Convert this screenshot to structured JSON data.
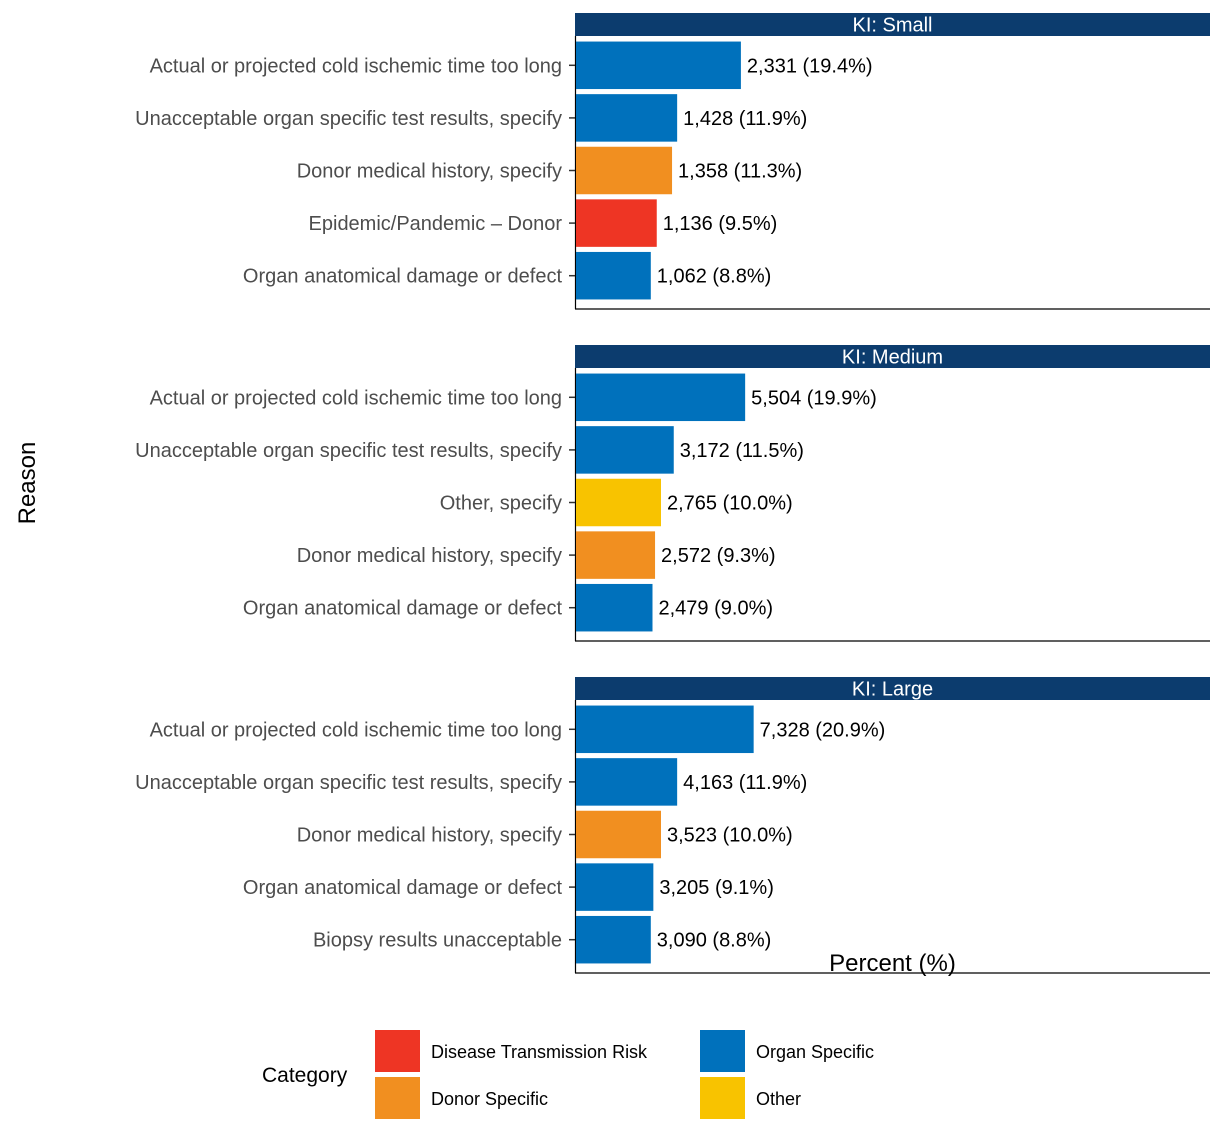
{
  "chart_data": {
    "type": "bar",
    "orientation": "horizontal",
    "facets": [
      {
        "title": "KI: Small",
        "bars": [
          {
            "reason": "Actual or projected cold ischemic time too long",
            "count": 2331,
            "percent": 19.4,
            "label": "2,331 (19.4%)",
            "category": "Organ Specific"
          },
          {
            "reason": "Unacceptable organ specific test results, specify",
            "count": 1428,
            "percent": 11.9,
            "label": "1,428 (11.9%)",
            "category": "Organ Specific"
          },
          {
            "reason": "Donor medical history, specify",
            "count": 1358,
            "percent": 11.3,
            "label": "1,358 (11.3%)",
            "category": "Donor Specific"
          },
          {
            "reason": "Epidemic/Pandemic – Donor",
            "count": 1136,
            "percent": 9.5,
            "label": "1,136 (9.5%)",
            "category": "Disease Transmission Risk"
          },
          {
            "reason": "Organ anatomical damage or defect",
            "count": 1062,
            "percent": 8.8,
            "label": "1,062 (8.8%)",
            "category": "Organ Specific"
          }
        ]
      },
      {
        "title": "KI: Medium",
        "bars": [
          {
            "reason": "Actual or projected cold ischemic time too long",
            "count": 5504,
            "percent": 19.9,
            "label": "5,504 (19.9%)",
            "category": "Organ Specific"
          },
          {
            "reason": "Unacceptable organ specific test results, specify",
            "count": 3172,
            "percent": 11.5,
            "label": "3,172 (11.5%)",
            "category": "Organ Specific"
          },
          {
            "reason": "Other, specify",
            "count": 2765,
            "percent": 10.0,
            "label": "2,765 (10.0%)",
            "category": "Other"
          },
          {
            "reason": "Donor medical history, specify",
            "count": 2572,
            "percent": 9.3,
            "label": "2,572 (9.3%)",
            "category": "Donor Specific"
          },
          {
            "reason": "Organ anatomical damage or defect",
            "count": 2479,
            "percent": 9.0,
            "label": "2,479 (9.0%)",
            "category": "Organ Specific"
          }
        ]
      },
      {
        "title": "KI: Large",
        "bars": [
          {
            "reason": "Actual or projected cold ischemic time too long",
            "count": 7328,
            "percent": 20.9,
            "label": "7,328 (20.9%)",
            "category": "Organ Specific"
          },
          {
            "reason": "Unacceptable organ specific test results, specify",
            "count": 4163,
            "percent": 11.9,
            "label": "4,163 (11.9%)",
            "category": "Organ Specific"
          },
          {
            "reason": "Donor medical history, specify",
            "count": 3523,
            "percent": 10.0,
            "label": "3,523 (10.0%)",
            "category": "Donor Specific"
          },
          {
            "reason": "Organ anatomical damage or defect",
            "count": 3205,
            "percent": 9.1,
            "label": "3,205 (9.1%)",
            "category": "Organ Specific"
          },
          {
            "reason": "Biopsy results unacceptable",
            "count": 3090,
            "percent": 8.8,
            "label": "3,090 (8.8%)",
            "category": "Organ Specific"
          }
        ]
      }
    ],
    "xlabel": "Percent (%)",
    "ylabel": "Reason",
    "xlim": [
      0,
      100
    ],
    "grid": false,
    "legend": {
      "title": "Category",
      "position": "bottom",
      "entries": [
        {
          "name": "Disease Transmission Risk",
          "color": "#EE3524"
        },
        {
          "name": "Organ Specific",
          "color": "#0071BC"
        },
        {
          "name": "Donor Specific",
          "color": "#F18F20"
        },
        {
          "name": "Other",
          "color": "#F8C300"
        }
      ]
    },
    "strip_color": "#0C3C6E"
  }
}
